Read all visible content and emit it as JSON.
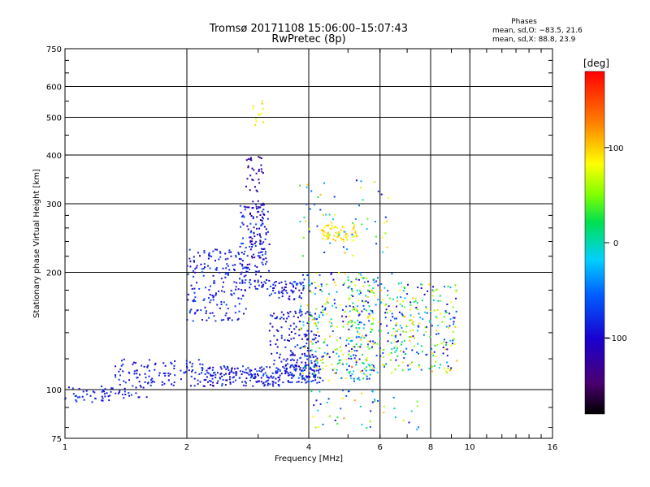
{
  "header": {
    "title_line1": "Tromsø 20171108 15:06:00–15:07:43",
    "title_line2": "RwPretec (8p)"
  },
  "legend": {
    "title": "Phases",
    "stat_o": "mean, sd,O: −83.5, 21.6",
    "stat_x": "mean, sd,X: 88.8, 23.9"
  },
  "colorbar": {
    "unit_label": "[deg]",
    "range": [
      -180,
      180
    ],
    "ticks": [
      100,
      0,
      -100
    ],
    "tick_labels": [
      "100",
      "0",
      "−100"
    ]
  },
  "chart_data": {
    "type": "scatter",
    "xlabel": "Frequency [MHz]",
    "ylabel": "Stationary phase Virtual Height [km]",
    "x_scale": "log",
    "y_scale": "log",
    "xlim": [
      1,
      16
    ],
    "ylim": [
      75,
      750
    ],
    "x_ticks": [
      1,
      2,
      4,
      6,
      8,
      10,
      16
    ],
    "x_tick_labels": [
      "1",
      "2",
      "4",
      "6",
      "8",
      "10",
      "16"
    ],
    "y_ticks": [
      75,
      100,
      200,
      300,
      400,
      500,
      600,
      750
    ],
    "y_tick_labels": [
      "75",
      "100",
      "200",
      "300",
      "400",
      "500",
      "600",
      "750"
    ],
    "grid": true,
    "clusters": [
      {
        "x": [
          1.0,
          1.3
        ],
        "y": [
          92,
          102
        ],
        "n": 40,
        "phase": [
          -100,
          -70
        ]
      },
      {
        "x": [
          1.3,
          1.6
        ],
        "y": [
          95,
          120
        ],
        "n": 60,
        "phase": [
          -110,
          -70
        ]
      },
      {
        "x": [
          1.6,
          2.2
        ],
        "y": [
          102,
          120
        ],
        "n": 70,
        "phase": [
          -100,
          -70
        ]
      },
      {
        "x": [
          2.2,
          3.5
        ],
        "y": [
          102,
          115
        ],
        "n": 180,
        "phase": [
          -120,
          -60
        ]
      },
      {
        "x": [
          3.5,
          4.3
        ],
        "y": [
          104,
          116
        ],
        "n": 90,
        "phase": [
          -110,
          -60
        ]
      },
      {
        "x": [
          2.0,
          2.8
        ],
        "y": [
          150,
          230
        ],
        "n": 180,
        "phase": [
          -110,
          -60
        ]
      },
      {
        "x": [
          2.7,
          3.2
        ],
        "y": [
          180,
          300
        ],
        "n": 140,
        "phase": [
          -110,
          -60
        ]
      },
      {
        "x": [
          2.8,
          3.1
        ],
        "y": [
          200,
          400
        ],
        "n": 70,
        "phase": [
          -140,
          -110
        ]
      },
      {
        "x": [
          2.9,
          3.1
        ],
        "y": [
          470,
          560
        ],
        "n": 12,
        "phase": [
          70,
          110
        ]
      },
      {
        "x": [
          3.2,
          3.9
        ],
        "y": [
          170,
          190
        ],
        "n": 60,
        "phase": [
          -120,
          -60
        ]
      },
      {
        "x": [
          3.2,
          4.2
        ],
        "y": [
          112,
          160
        ],
        "n": 140,
        "phase": [
          -120,
          -70
        ]
      },
      {
        "x": [
          4.3,
          5.3
        ],
        "y": [
          240,
          265
        ],
        "n": 70,
        "phase": [
          70,
          110
        ]
      },
      {
        "x": [
          3.8,
          5.8
        ],
        "y": [
          105,
          200
        ],
        "n": 300,
        "phase": [
          -120,
          110
        ]
      },
      {
        "x": [
          5.0,
          6.5
        ],
        "y": [
          110,
          200
        ],
        "n": 140,
        "phase": [
          -120,
          110
        ]
      },
      {
        "x": [
          6.5,
          9.3
        ],
        "y": [
          110,
          190
        ],
        "n": 220,
        "phase": [
          -120,
          110
        ]
      },
      {
        "x": [
          3.8,
          6.3
        ],
        "y": [
          220,
          345
        ],
        "n": 60,
        "phase": [
          -110,
          110
        ]
      },
      {
        "x": [
          4.0,
          7.5
        ],
        "y": [
          78,
          100
        ],
        "n": 50,
        "phase": [
          -100,
          120
        ]
      }
    ]
  }
}
